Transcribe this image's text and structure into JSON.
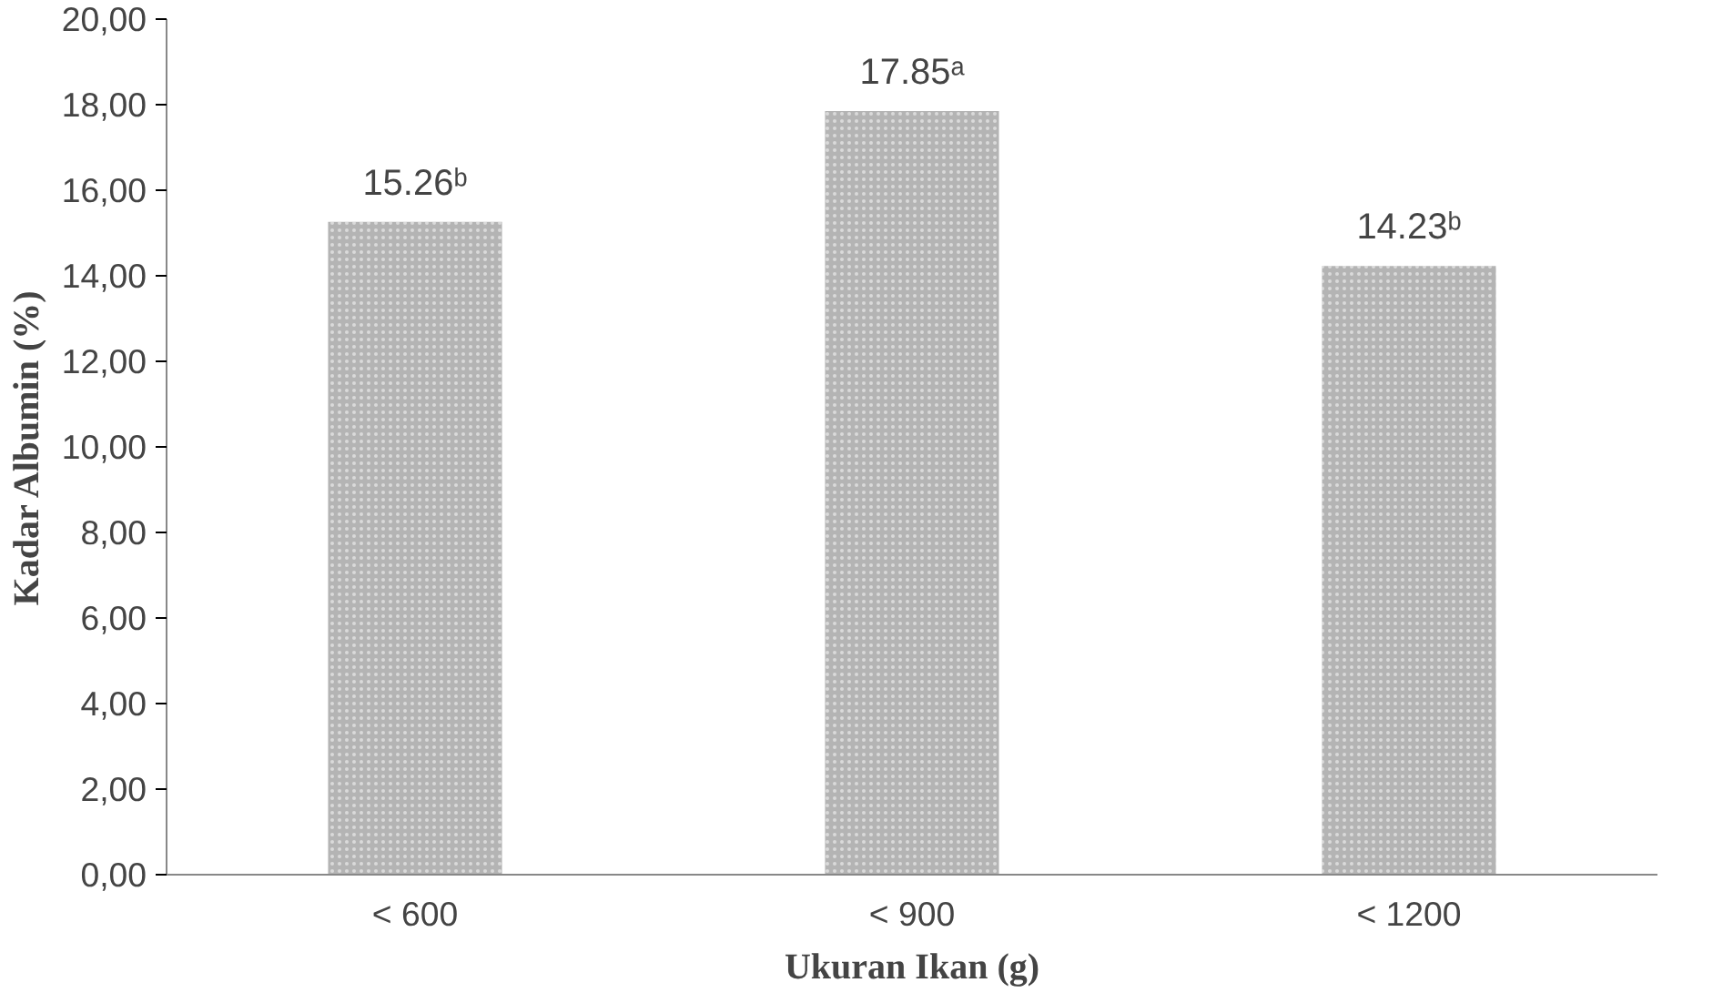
{
  "chart_data": {
    "type": "bar",
    "xlabel": "Ukuran Ikan (g)",
    "ylabel": "Kadar Albumin (%)",
    "categories": [
      "< 600",
      "< 900",
      "< 1200"
    ],
    "values": [
      15.26,
      17.85,
      14.23
    ],
    "value_labels": [
      "15.26ᵇ",
      "17.85ᵃ",
      "14.23ᵇ"
    ],
    "color": "#b4b4b4",
    "ylim": [
      0,
      20
    ],
    "yticks": [
      {
        "value": 0,
        "label": "0,00"
      },
      {
        "value": 2,
        "label": "2,00"
      },
      {
        "value": 4,
        "label": "4,00"
      },
      {
        "value": 6,
        "label": "6,00"
      },
      {
        "value": 8,
        "label": "8,00"
      },
      {
        "value": 10,
        "label": "10,00"
      },
      {
        "value": 12,
        "label": "12,00"
      },
      {
        "value": 14,
        "label": "14,00"
      },
      {
        "value": 16,
        "label": "16,00"
      },
      {
        "value": 18,
        "label": "18,00"
      },
      {
        "value": 20,
        "label": "20,00"
      }
    ],
    "grid": false
  }
}
